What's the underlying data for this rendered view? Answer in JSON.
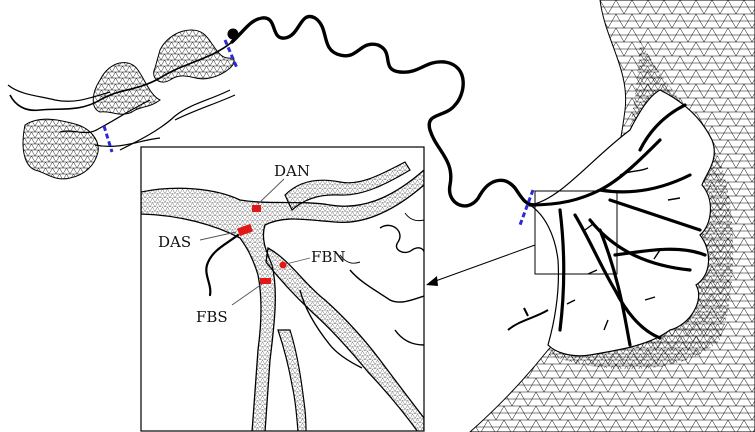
{
  "figure": {
    "colors": {
      "ink": "#000000",
      "mesh": "#c8c8c8",
      "gauge": "#2a2ad8",
      "site": "#e01818"
    },
    "inset": {
      "labels": {
        "dan": "DAN",
        "das": "DAS",
        "fbn": "FBN",
        "fbs": "FBS"
      }
    }
  }
}
